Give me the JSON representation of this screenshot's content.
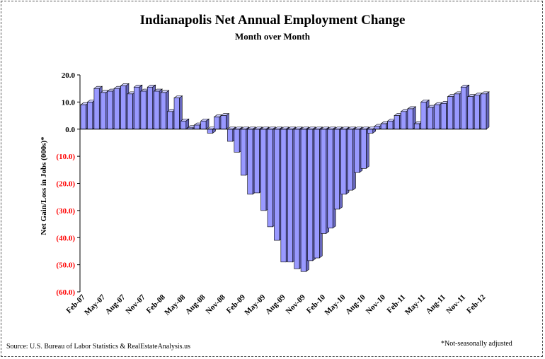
{
  "chart_data": {
    "type": "bar",
    "title": "Indianapolis Net Annual Employment Change",
    "subtitle": "Month over Month",
    "xlabel": "",
    "ylabel": "Net Gain/Loss in Jobs (000s)*",
    "ylim": [
      -60,
      20
    ],
    "yticks": [
      20,
      10,
      0,
      -10,
      -20,
      -30,
      -40,
      -50,
      -60
    ],
    "ytick_labels": [
      "20.0",
      "10.0",
      "0.0",
      "(10.0)",
      "(20.0)",
      "(30.0)",
      "(40.0)",
      "(50.0)",
      "(60.0)"
    ],
    "tick_label_categories": [
      "Feb-07",
      "May-07",
      "Aug-07",
      "Nov-07",
      "Feb-08",
      "May-08",
      "Aug-08",
      "Nov-08",
      "Feb-09",
      "May-09",
      "Aug-09",
      "Nov-09",
      "Feb-10",
      "May-10",
      "Aug-10",
      "Nov-10",
      "Feb-11",
      "May-11",
      "Aug-11",
      "Nov-11",
      "Feb-12"
    ],
    "categories": [
      "Feb-07",
      "Mar-07",
      "Apr-07",
      "May-07",
      "Jun-07",
      "Jul-07",
      "Aug-07",
      "Sep-07",
      "Oct-07",
      "Nov-07",
      "Dec-07",
      "Jan-08",
      "Feb-08",
      "Mar-08",
      "Apr-08",
      "May-08",
      "Jun-08",
      "Jul-08",
      "Aug-08",
      "Sep-08",
      "Oct-08",
      "Nov-08",
      "Dec-08",
      "Jan-09",
      "Feb-09",
      "Mar-09",
      "Apr-09",
      "May-09",
      "Jun-09",
      "Jul-09",
      "Aug-09",
      "Sep-09",
      "Oct-09",
      "Nov-09",
      "Dec-09",
      "Jan-10",
      "Feb-10",
      "Mar-10",
      "Apr-10",
      "May-10",
      "Jun-10",
      "Jul-10",
      "Aug-10",
      "Sep-10",
      "Oct-10",
      "Nov-10",
      "Dec-10",
      "Jan-11",
      "Feb-11",
      "Mar-11",
      "Apr-11",
      "May-11",
      "Jun-11",
      "Jul-11",
      "Aug-11",
      "Sep-11",
      "Oct-11",
      "Nov-11",
      "Dec-11",
      "Jan-12",
      "Feb-12"
    ],
    "values": [
      9.0,
      10.0,
      15.0,
      13.5,
      14.0,
      15.0,
      16.0,
      13.0,
      15.5,
      14.0,
      15.5,
      14.0,
      13.5,
      6.5,
      11.5,
      3.0,
      0.5,
      1.5,
      3.0,
      -1.5,
      4.5,
      5.0,
      -4.5,
      -8.5,
      -17.0,
      -24.0,
      -23.5,
      -30.0,
      -36.0,
      -41.0,
      -49.0,
      -49.0,
      -51.5,
      -52.5,
      -48.5,
      -47.5,
      -38.5,
      -36.5,
      -29.5,
      -24.0,
      -22.5,
      -16.0,
      -14.5,
      -1.5,
      1.0,
      2.0,
      3.0,
      5.0,
      6.5,
      7.5,
      2.0,
      10.0,
      8.0,
      9.0,
      9.5,
      12.0,
      13.0,
      15.5,
      12.0,
      12.5,
      13.0
    ],
    "bar_color": "#9999ff",
    "negative_tick_color": "#ff0000",
    "grid": false,
    "legend": "none"
  },
  "footer": {
    "source": "Source: U.S. Bureau of Labor Statistics & RealEstateAnalysis.us",
    "note": "*Not-seasonally adjusted"
  }
}
